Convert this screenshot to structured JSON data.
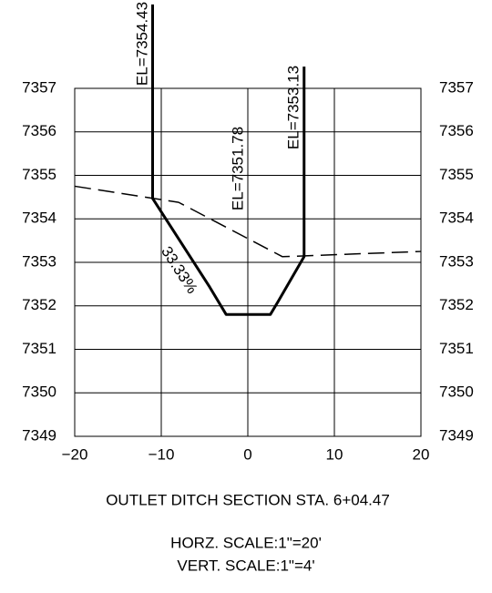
{
  "chart_data": {
    "type": "line",
    "title": "OUTLET DITCH SECTION STA. 6+04.47",
    "subtitle": [
      "HORZ. SCALE:1\"=20'",
      "VERT. SCALE:1\"=4'"
    ],
    "annotations": [
      "EL=7354.43",
      "EL=7351.78",
      "EL=7353.13",
      "33.33%"
    ],
    "xlim": [
      -20,
      20
    ],
    "xticks": [
      {
        "value": -20,
        "label": "−20"
      },
      {
        "value": -10,
        "label": "−10"
      },
      0,
      10,
      20
    ],
    "ylim": [
      7349,
      7357
    ],
    "yticks": [
      7349,
      7350,
      7351,
      7352,
      7353,
      7354,
      7355,
      7356,
      7357
    ],
    "grid": true,
    "series": [
      {
        "color": "#000000",
        "line_style": "dashed",
        "line_width": 1.5,
        "x": [
          -20,
          -8,
          4,
          20
        ],
        "values": [
          7354.75,
          7354.38,
          7353.13,
          7353.25
        ]
      },
      {
        "color": "#000000",
        "line_style": "solid",
        "line_width": 3,
        "x": [
          -11,
          -11,
          -4.4,
          -2.5,
          2.6,
          3.5,
          6.5,
          6.5
        ],
        "values": [
          7358.93,
          7354.47,
          7352.43,
          7351.8,
          7351.8,
          7352.1,
          7353.13,
          7357.5
        ]
      }
    ]
  }
}
